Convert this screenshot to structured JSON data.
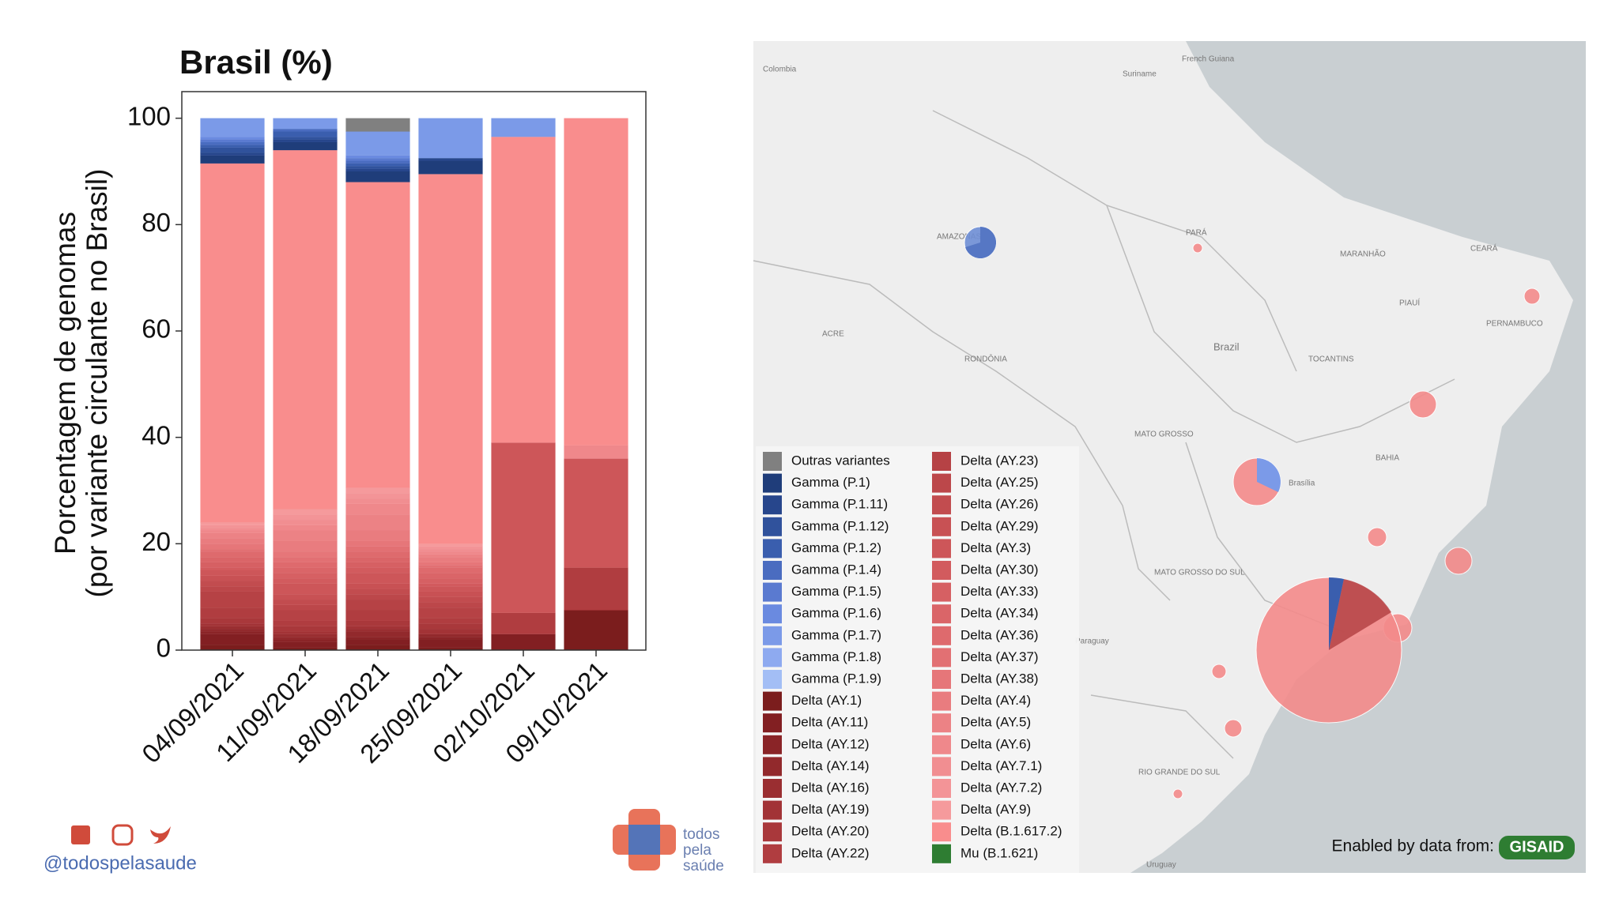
{
  "chart_data": {
    "type": "bar",
    "stacked": true,
    "title": "Brasil (%)",
    "y_label": [
      "Porcentagem de genomas",
      "(por variante circulante no Brasil)"
    ],
    "categories": [
      "04/09/2021",
      "11/09/2021",
      "18/09/2021",
      "25/09/2021",
      "02/10/2021",
      "09/10/2021"
    ],
    "ylim": [
      0,
      105
    ],
    "yticks": [
      0,
      20,
      40,
      60,
      80,
      100
    ],
    "series": [
      {
        "name": "Outras variantes",
        "color": "#808080",
        "values": [
          0,
          0,
          2.5,
          0,
          0,
          0
        ]
      },
      {
        "name": "Gamma (P.1)",
        "color": "#1f3d7a",
        "values": [
          1.5,
          1.5,
          2,
          2.5,
          0,
          0
        ]
      },
      {
        "name": "Gamma (P.1.11)",
        "color": "#27468c",
        "values": [
          0.5,
          0.5,
          0.5,
          0.5,
          0,
          0
        ]
      },
      {
        "name": "Gamma (P.1.12)",
        "color": "#30529c",
        "values": [
          1,
          0.5,
          0.5,
          0,
          0,
          0
        ]
      },
      {
        "name": "Gamma (P.1.2)",
        "color": "#3a5eae",
        "values": [
          0.5,
          1,
          0.5,
          0,
          0,
          0
        ]
      },
      {
        "name": "Gamma (P.1.4)",
        "color": "#4a6cc0",
        "values": [
          0.5,
          0.5,
          0.5,
          0,
          0,
          0
        ]
      },
      {
        "name": "Gamma (P.1.5)",
        "color": "#5a7ad0",
        "values": [
          0.5,
          0,
          0.5,
          0,
          0,
          0
        ]
      },
      {
        "name": "Gamma (P.1.6)",
        "color": "#6a8ae0",
        "values": [
          0.5,
          0,
          0.5,
          0,
          0,
          0
        ]
      },
      {
        "name": "Gamma (P.1.7)",
        "color": "#7b9ae8",
        "values": [
          3.5,
          2,
          4.5,
          7.5,
          3.5,
          0
        ]
      },
      {
        "name": "Gamma (P.1.8)",
        "color": "#8eaaf0",
        "values": [
          0,
          0,
          0,
          0,
          0,
          0
        ]
      },
      {
        "name": "Gamma (P.1.9)",
        "color": "#a3bef5",
        "values": [
          0,
          0,
          0,
          0,
          0,
          0
        ]
      },
      {
        "name": "Delta (AY.1)",
        "color": "#7b1d1d",
        "values": [
          1,
          0.5,
          1,
          0.5,
          0,
          7.5
        ]
      },
      {
        "name": "Delta (AY.11)",
        "color": "#821f22",
        "values": [
          2,
          1,
          1,
          1.5,
          3,
          0
        ]
      },
      {
        "name": "Delta (AY.12)",
        "color": "#8a2427",
        "values": [
          0.5,
          0.5,
          0.5,
          0.5,
          0,
          0
        ]
      },
      {
        "name": "Delta (AY.14)",
        "color": "#92292c",
        "values": [
          0.5,
          0.5,
          1,
          0.5,
          0,
          0
        ]
      },
      {
        "name": "Delta (AY.16)",
        "color": "#9a2e31",
        "values": [
          0.5,
          0.5,
          0.5,
          0,
          0,
          0
        ]
      },
      {
        "name": "Delta (AY.19)",
        "color": "#a23336",
        "values": [
          0.5,
          0.5,
          0.5,
          1,
          0,
          0
        ]
      },
      {
        "name": "Delta (AY.20)",
        "color": "#a9383b",
        "values": [
          1,
          1,
          1,
          1,
          0,
          0
        ]
      },
      {
        "name": "Delta (AY.22)",
        "color": "#b03d40",
        "values": [
          2,
          1,
          2,
          1,
          4,
          8
        ]
      },
      {
        "name": "Delta (AY.23)",
        "color": "#b64245",
        "values": [
          3,
          2,
          2,
          2,
          0,
          0
        ]
      },
      {
        "name": "Delta (AY.25)",
        "color": "#bc474a",
        "values": [
          1,
          1,
          1,
          1,
          0,
          0
        ]
      },
      {
        "name": "Delta (AY.26)",
        "color": "#c24c4f",
        "values": [
          1,
          1,
          1,
          1,
          0,
          0
        ]
      },
      {
        "name": "Delta (AY.29)",
        "color": "#c85154",
        "values": [
          1,
          1,
          1,
          1,
          0,
          0
        ]
      },
      {
        "name": "Delta (AY.3)",
        "color": "#cd5659",
        "values": [
          1,
          2,
          2,
          1,
          32,
          20.5
        ]
      },
      {
        "name": "Delta (AY.30)",
        "color": "#d25b5e",
        "values": [
          0.5,
          1,
          1,
          0.5,
          0,
          0
        ]
      },
      {
        "name": "Delta (AY.33)",
        "color": "#d66063",
        "values": [
          1,
          1,
          1,
          1,
          0,
          0
        ]
      },
      {
        "name": "Delta (AY.34)",
        "color": "#da6568",
        "values": [
          1,
          1,
          1,
          1,
          0,
          0
        ]
      },
      {
        "name": "Delta (AY.36)",
        "color": "#de6a6d",
        "values": [
          1,
          1,
          1,
          1,
          0,
          0
        ]
      },
      {
        "name": "Delta (AY.37)",
        "color": "#e27073",
        "values": [
          0.5,
          1,
          1,
          0.5,
          0,
          0
        ]
      },
      {
        "name": "Delta (AY.38)",
        "color": "#e67679",
        "values": [
          1,
          1,
          1,
          0.5,
          0,
          0
        ]
      },
      {
        "name": "Delta (AY.4)",
        "color": "#e97c7f",
        "values": [
          1,
          2,
          2,
          1,
          0,
          0
        ]
      },
      {
        "name": "Delta (AY.5)",
        "color": "#ec8285",
        "values": [
          1,
          2,
          3,
          0.5,
          0,
          0
        ]
      },
      {
        "name": "Delta (AY.6)",
        "color": "#ef888b",
        "values": [
          0.5,
          1,
          2,
          0.5,
          0,
          2.5
        ]
      },
      {
        "name": "Delta (AY.7.1)",
        "color": "#f18e91",
        "values": [
          0.5,
          1,
          1,
          0.5,
          0,
          0
        ]
      },
      {
        "name": "Delta (AY.7.2)",
        "color": "#f39497",
        "values": [
          0.5,
          1,
          1,
          0.5,
          0,
          0
        ]
      },
      {
        "name": "Delta (AY.9)",
        "color": "#f59a9c",
        "values": [
          0.5,
          1,
          1,
          0.5,
          0,
          0
        ]
      },
      {
        "name": "Delta (B.1.617.2)",
        "color": "#f98d8d",
        "values": [
          67.5,
          67.5,
          57.5,
          69.5,
          57.5,
          61.5
        ]
      },
      {
        "name": "Mu (B.1.621)",
        "color": "#2e7d32",
        "values": [
          0,
          0,
          0,
          0,
          0,
          0
        ]
      }
    ]
  },
  "map": {
    "labels": [
      "Colombia",
      "Suriname",
      "French Guiana",
      "Brazil",
      "Uruguay",
      "AMAZONAS",
      "PARÁ",
      "MARANHÃO",
      "CEARÁ",
      "PIAUÍ",
      "TOCANTINS",
      "RONDÔNIA",
      "ACRE",
      "MATO GROSSO",
      "BAHIA",
      "PERNAMBUCO",
      "Brasília",
      "MATO GROSSO DO SUL",
      "RIO GRANDE DO SUL",
      "Paraguay"
    ],
    "credit": "Enabled by data from:",
    "credit_logo": "GISAID"
  },
  "footer": {
    "handle": "@todospelasaude",
    "logo_text": [
      "todos",
      "pela",
      "saúde"
    ]
  }
}
